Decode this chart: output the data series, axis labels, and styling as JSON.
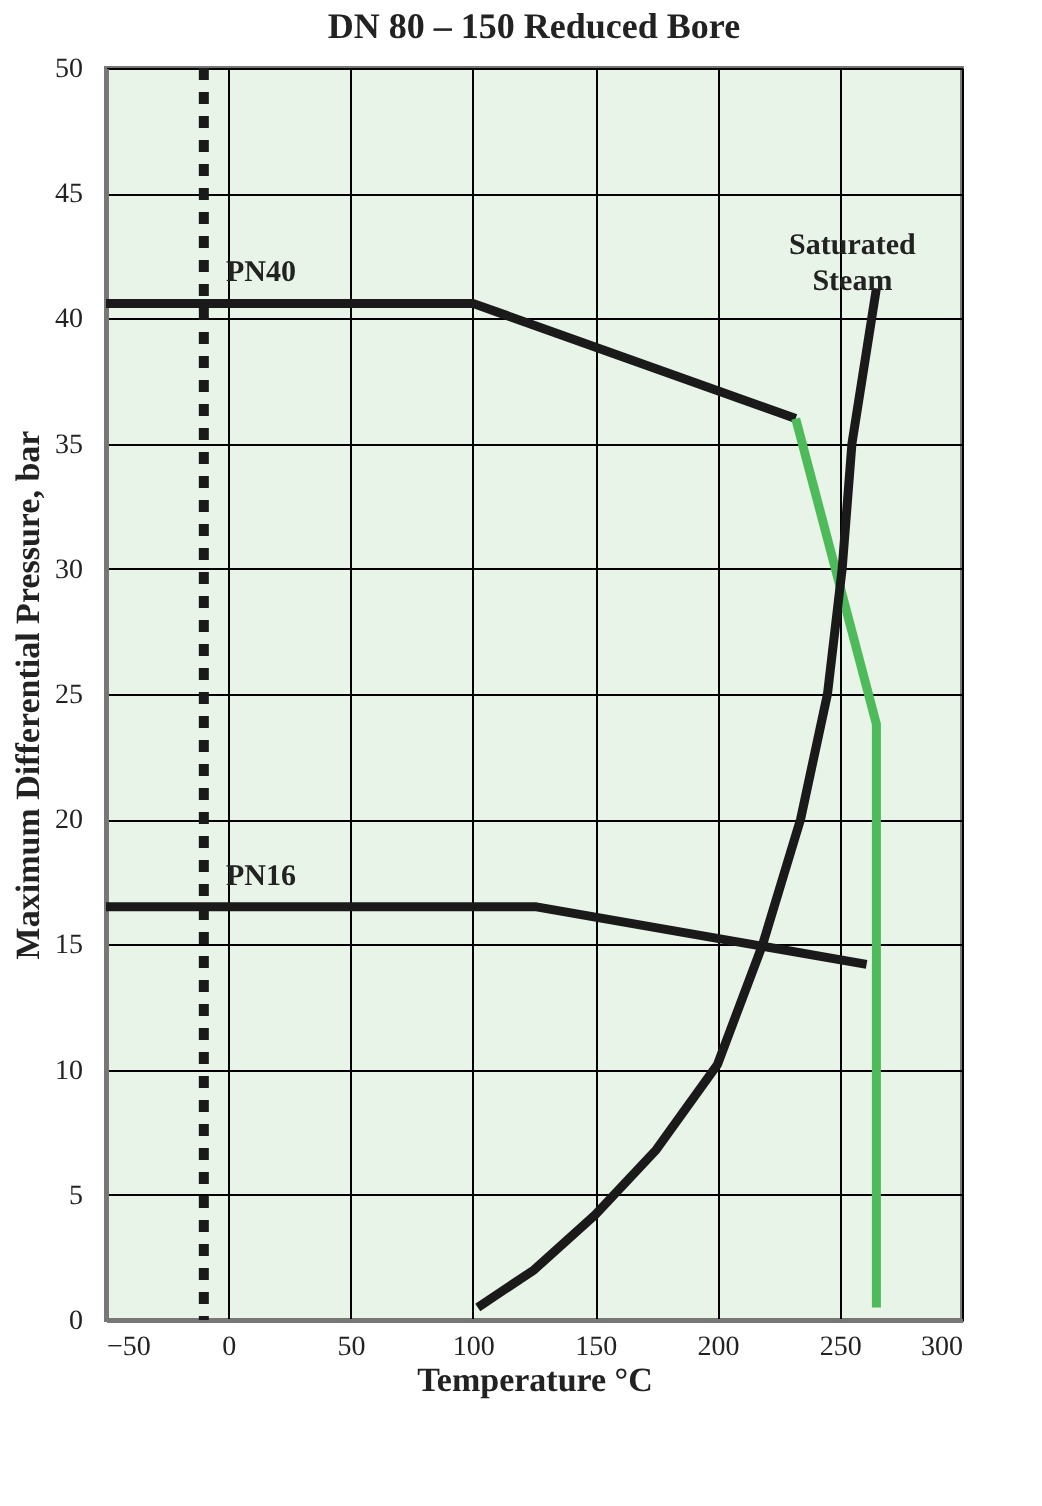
{
  "chart_data": {
    "type": "line",
    "title": "DN 80 – 150 Reduced Bore",
    "xlabel": "Temperature °C",
    "ylabel": "Maximum Differential Pressure, bar",
    "xlim": [
      -50,
      300
    ],
    "xticks": [
      -50,
      0,
      50,
      100,
      150,
      200,
      250,
      300
    ],
    "ylim": [
      0,
      50
    ],
    "yticks": [
      0,
      5,
      10,
      15,
      20,
      25,
      30,
      35,
      40,
      45,
      50
    ],
    "grid": true,
    "marker": "none",
    "line_style": "solid",
    "series": [
      {
        "name": "PN40",
        "color": "#1a1a1a",
        "x": [
          -50,
          100,
          232
        ],
        "values": [
          40.6,
          40.6,
          36
        ]
      },
      {
        "color": "#4dbb5a",
        "x": [
          232,
          265,
          265
        ],
        "values": [
          36,
          23.8,
          0.5
        ]
      },
      {
        "name": "PN16",
        "color": "#1a1a1a",
        "x": [
          -50,
          126,
          261
        ],
        "values": [
          16.5,
          16.5,
          14.2
        ]
      },
      {
        "name": "Saturated\nSteam",
        "color": "#1a1a1a",
        "x": [
          102,
          125,
          150,
          175,
          200,
          218.5,
          234,
          245,
          251,
          255,
          265
        ],
        "values": [
          0.5,
          2,
          4.2,
          6.8,
          10.2,
          15,
          20,
          25,
          30,
          35,
          41.2
        ]
      }
    ],
    "ref_lines": [
      {
        "axis": "x",
        "value": -10,
        "color": "#1a1a1a",
        "line_style": "dashed"
      }
    ]
  }
}
